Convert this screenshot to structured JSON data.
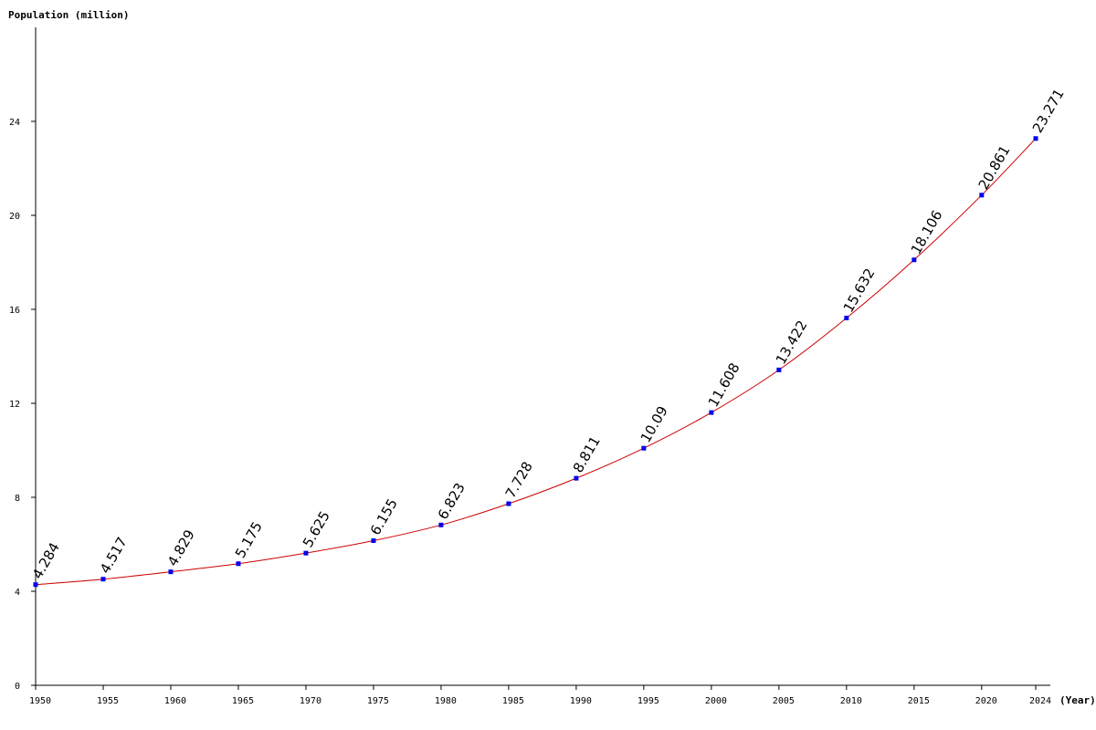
{
  "chart_data": {
    "type": "line",
    "title": "",
    "ylabel": "Population (million)",
    "xlabel": "(Year)",
    "x": [
      1950,
      1955,
      1960,
      1965,
      1970,
      1975,
      1980,
      1985,
      1990,
      1995,
      2000,
      2005,
      2010,
      2015,
      2020,
      2024
    ],
    "series": [
      {
        "values": [
          4.284,
          4.517,
          4.829,
          5.175,
          5.625,
          6.155,
          6.823,
          7.728,
          8.811,
          10.09,
          11.608,
          13.422,
          15.632,
          18.106,
          20.861,
          23.271
        ],
        "labels": [
          "4.284",
          "4.517",
          "4.829",
          "5.175",
          "5.625",
          "6.155",
          "6.823",
          "7.728",
          "8.811",
          "10.09",
          "11.608",
          "13.422",
          "15.632",
          "18.106",
          "20.861",
          "23.271"
        ]
      }
    ],
    "x_tick_labels": [
      "1950",
      "1955",
      "1960",
      "1965",
      "1970",
      "1975",
      "1980",
      "1985",
      "1990",
      "1995",
      "2000",
      "2005",
      "2010",
      "2015",
      "2020",
      "2024"
    ],
    "y_ticks": [
      0,
      4,
      8,
      12,
      16,
      20,
      24
    ],
    "y_tick_labels": [
      "0",
      "4",
      "8",
      "12",
      "16",
      "20",
      "24"
    ],
    "ylim": [
      0,
      28
    ],
    "xlim": [
      1950,
      2024
    ],
    "grid": false,
    "colors": {
      "line": "#cc0000",
      "marker": "#0000ee",
      "axis": "#000000"
    }
  }
}
